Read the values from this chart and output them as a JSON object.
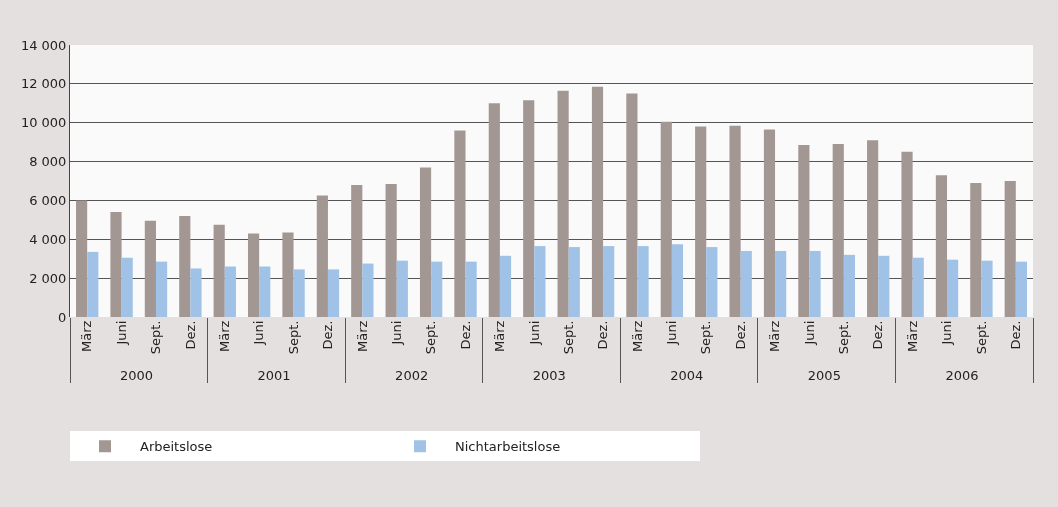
{
  "chart_data": {
    "type": "bar",
    "categories": [
      "März",
      "Juni",
      "Sept.",
      "Dez.",
      "März",
      "Juni",
      "Sept.",
      "Dez.",
      "März",
      "Juni",
      "Sept.",
      "Dez.",
      "März",
      "Juni",
      "Sept.",
      "Dez.",
      "März",
      "Juni",
      "Sept.",
      "Dez.",
      "März",
      "Juni",
      "Sept.",
      "Dez.",
      "März",
      "Juni",
      "Sept.",
      "Dez."
    ],
    "annotations": [
      "2000",
      "2001",
      "2002",
      "2003",
      "2004",
      "2005",
      "2006"
    ],
    "series": [
      {
        "name": "Arbeitslose",
        "color": "#a39793",
        "values": [
          6000,
          5400,
          4950,
          5200,
          4750,
          4300,
          4350,
          6250,
          6800,
          6850,
          7700,
          9600,
          11000,
          11150,
          11650,
          11850,
          11500,
          10050,
          9800,
          9850,
          9650,
          8850,
          8900,
          9100,
          8500,
          7300,
          6900,
          7000
        ]
      },
      {
        "name": "Nichtarbeitslose",
        "color": "#a0c2e6",
        "values": [
          3350,
          3050,
          2850,
          2500,
          2600,
          2600,
          2450,
          2450,
          2750,
          2900,
          2850,
          2850,
          3150,
          3650,
          3600,
          3650,
          3650,
          3750,
          3600,
          3400,
          3400,
          3400,
          3200,
          3150,
          3050,
          2950,
          2900,
          2850
        ]
      }
    ],
    "ylim": [
      0,
      14000
    ],
    "yticks": [
      0,
      {
        "value": 2000,
        "label": "2 000"
      },
      {
        "value": 4000,
        "label": "4 000"
      },
      {
        "value": 6000,
        "label": "6 000"
      },
      {
        "value": 8000,
        "label": "8 000"
      },
      {
        "value": 10000,
        "label": "10 000"
      },
      {
        "value": 12000,
        "label": "12 000"
      },
      {
        "value": 14000,
        "label": "14 000"
      }
    ],
    "grid": "y",
    "legend": "bottom left"
  }
}
